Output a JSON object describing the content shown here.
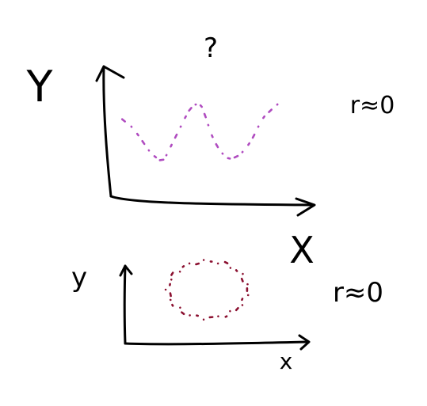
{
  "top_plot": {
    "title": "?",
    "ylabel": "Y",
    "xlabel": "X",
    "annotation": "r≈0",
    "color": "#b04cc0",
    "shape": "w-wave"
  },
  "bottom_plot": {
    "ylabel": "y",
    "xlabel": "x",
    "annotation": "r≈0",
    "color": "#8b1030",
    "shape": "ring"
  }
}
